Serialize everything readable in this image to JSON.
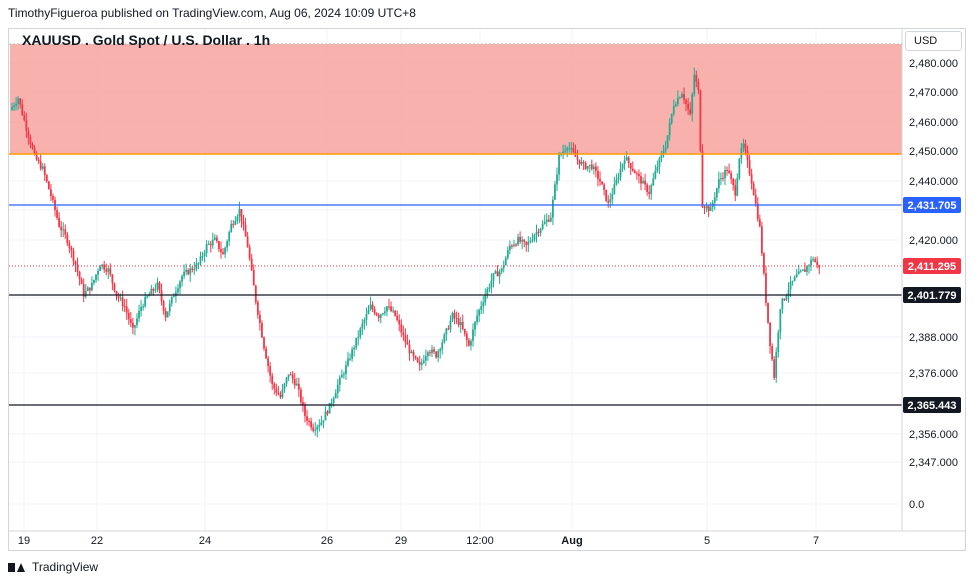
{
  "header": {
    "publisher_line": "TimothyFigueroa published on TradingView.com, Aug 06, 2024 10:09 UTC+8"
  },
  "symbol": {
    "title": "XAUUSD . Gold Spot / U.S. Dollar . 1h",
    "currency": "USD"
  },
  "footer": {
    "brand": "TradingView"
  },
  "colors": {
    "up": "#22ab94",
    "down": "#f23645",
    "zone_fill": "#f7a8a3",
    "orange_line": "#ff9800",
    "blue_line": "#2962ff",
    "black_line": "#131722",
    "grid": "#f0f3fa"
  },
  "chart_data": {
    "type": "candlestick",
    "y_axis_ticks": [
      "2,480.000",
      "2,470.000",
      "2,460.000",
      "2,450.000",
      "2,440.000",
      "2,420.000",
      "2,388.000",
      "2,376.000",
      "2,356.000",
      "2,347.000",
      "0.0"
    ],
    "x_axis_ticks": [
      "19",
      "22",
      "24",
      "26",
      "29",
      "12:00",
      "Aug",
      "5",
      "7"
    ],
    "resistance_zone": {
      "from": 2449,
      "to": 2490
    },
    "horizontal_lines": [
      {
        "value": 2449,
        "color": "orange",
        "label": ""
      },
      {
        "value": 2431.705,
        "color": "blue",
        "label": "2,431.705"
      },
      {
        "value": 2401.779,
        "color": "black",
        "label": "2,401.779"
      },
      {
        "value": 2365.443,
        "color": "black",
        "label": "2,365.443"
      }
    ],
    "last_price": {
      "value": 2411.295,
      "label": "2,411.295"
    },
    "price_path": [
      [
        0,
        2464
      ],
      [
        4,
        2468
      ],
      [
        8,
        2458
      ],
      [
        12,
        2448
      ],
      [
        16,
        2444
      ],
      [
        20,
        2435
      ],
      [
        24,
        2425
      ],
      [
        28,
        2420
      ],
      [
        32,
        2412
      ],
      [
        36,
        2402
      ],
      [
        40,
        2405
      ],
      [
        44,
        2412
      ],
      [
        48,
        2410
      ],
      [
        52,
        2402
      ],
      [
        56,
        2398
      ],
      [
        60,
        2390
      ],
      [
        64,
        2398
      ],
      [
        68,
        2402
      ],
      [
        72,
        2405
      ],
      [
        76,
        2395
      ],
      [
        80,
        2402
      ],
      [
        84,
        2408
      ],
      [
        88,
        2410
      ],
      [
        92,
        2412
      ],
      [
        96,
        2418
      ],
      [
        100,
        2420
      ],
      [
        104,
        2415
      ],
      [
        108,
        2425
      ],
      [
        112,
        2430
      ],
      [
        116,
        2418
      ],
      [
        120,
        2400
      ],
      [
        124,
        2385
      ],
      [
        128,
        2372
      ],
      [
        132,
        2368
      ],
      [
        136,
        2376
      ],
      [
        140,
        2372
      ],
      [
        144,
        2362
      ],
      [
        148,
        2358
      ],
      [
        152,
        2360
      ],
      [
        156,
        2365
      ],
      [
        160,
        2372
      ],
      [
        164,
        2378
      ],
      [
        168,
        2385
      ],
      [
        172,
        2392
      ],
      [
        176,
        2398
      ],
      [
        180,
        2395
      ],
      [
        184,
        2398
      ],
      [
        188,
        2395
      ],
      [
        192,
        2388
      ],
      [
        196,
        2382
      ],
      [
        200,
        2378
      ],
      [
        204,
        2384
      ],
      [
        208,
        2382
      ],
      [
        212,
        2388
      ],
      [
        216,
        2395
      ],
      [
        220,
        2392
      ],
      [
        224,
        2385
      ],
      [
        228,
        2395
      ],
      [
        232,
        2402
      ],
      [
        236,
        2408
      ],
      [
        240,
        2410
      ],
      [
        244,
        2418
      ],
      [
        248,
        2420
      ],
      [
        252,
        2418
      ],
      [
        256,
        2422
      ],
      [
        260,
        2425
      ],
      [
        264,
        2428
      ],
      [
        268,
        2448
      ],
      [
        272,
        2452
      ],
      [
        276,
        2448
      ],
      [
        280,
        2445
      ],
      [
        284,
        2445
      ],
      [
        288,
        2440
      ],
      [
        292,
        2432
      ],
      [
        296,
        2440
      ],
      [
        300,
        2448
      ],
      [
        304,
        2444
      ],
      [
        308,
        2440
      ],
      [
        312,
        2436
      ],
      [
        316,
        2445
      ],
      [
        320,
        2452
      ],
      [
        324,
        2466
      ],
      [
        328,
        2470
      ],
      [
        332,
        2462
      ],
      [
        334,
        2476
      ],
      [
        336,
        2470
      ],
      [
        338,
        2432
      ],
      [
        342,
        2430
      ],
      [
        346,
        2440
      ],
      [
        350,
        2444
      ],
      [
        354,
        2436
      ],
      [
        356,
        2448
      ],
      [
        358,
        2452
      ],
      [
        362,
        2440
      ],
      [
        366,
        2424
      ],
      [
        369,
        2400
      ],
      [
        371,
        2386
      ],
      [
        373,
        2375
      ],
      [
        376,
        2398
      ],
      [
        380,
        2404
      ],
      [
        384,
        2408
      ],
      [
        388,
        2410
      ],
      [
        392,
        2414
      ],
      [
        394,
        2411.295
      ]
    ],
    "x_max": 430,
    "y_min": 2343,
    "y_max": 2492
  }
}
